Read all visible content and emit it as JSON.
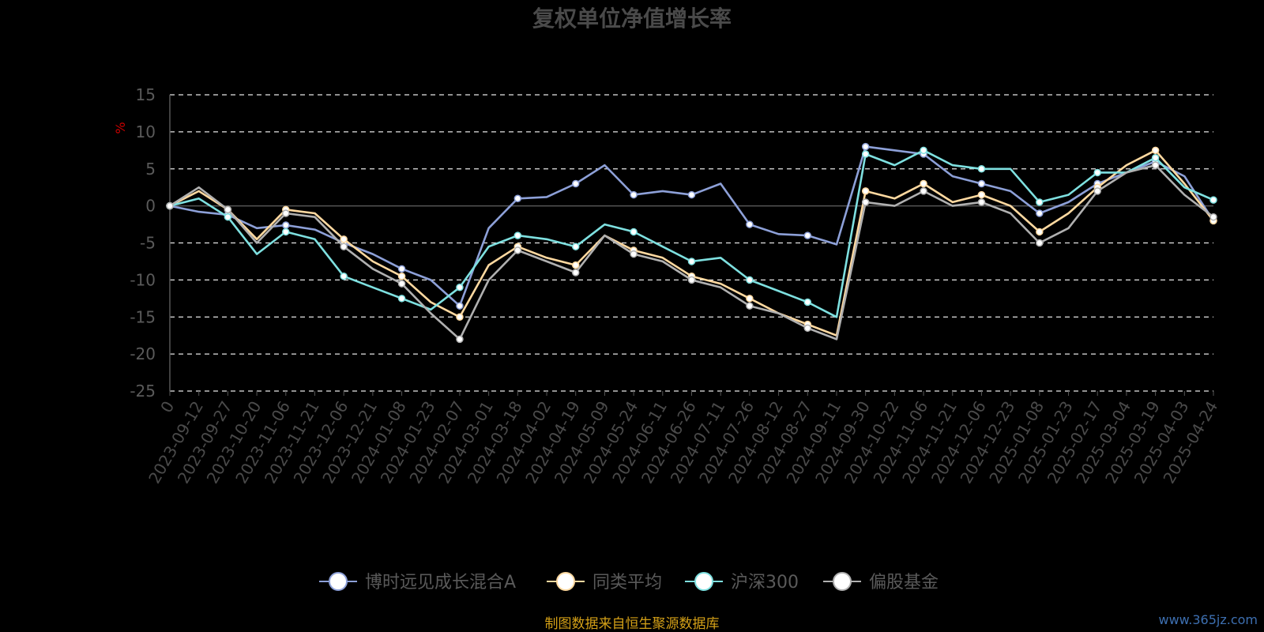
{
  "watermark": "www.365jz.com",
  "source_note": "制图数据来自恒生聚源数据库",
  "chart_data": {
    "type": "line",
    "title": "复权单位净值增长率",
    "ylabel": "%",
    "ylim": [
      -25,
      15
    ],
    "yticks": [
      15,
      10,
      5,
      0,
      -5,
      -10,
      -15,
      -20,
      -25
    ],
    "grid": "dashed-horizontal",
    "legend_position": "bottom-center",
    "x": [
      "0",
      "2023-09-12",
      "2023-09-27",
      "2023-10-20",
      "2023-11-06",
      "2023-11-21",
      "2023-12-06",
      "2023-12-21",
      "2024-01-08",
      "2024-01-23",
      "2024-02-07",
      "2024-03-01",
      "2024-03-18",
      "2024-04-02",
      "2024-04-19",
      "2024-05-09",
      "2024-05-24",
      "2024-06-11",
      "2024-06-26",
      "2024-07-11",
      "2024-07-26",
      "2024-08-12",
      "2024-08-27",
      "2024-09-11",
      "2024-09-30",
      "2024-10-22",
      "2024-11-06",
      "2024-11-21",
      "2024-12-06",
      "2024-12-23",
      "2025-01-08",
      "2025-01-23",
      "2025-02-17",
      "2025-03-04",
      "2025-03-19",
      "2025-04-03",
      "2025-04-24"
    ],
    "series": [
      {
        "name": "博时远见成长混合A",
        "color": "#8da0d8",
        "values": [
          0,
          -0.8,
          -1.2,
          -3.0,
          -2.6,
          -3.2,
          -5.0,
          -6.5,
          -8.5,
          -10.0,
          -13.5,
          -3.0,
          1.0,
          1.2,
          3.0,
          5.5,
          1.5,
          2.0,
          1.5,
          3.0,
          -2.5,
          -3.8,
          -4.0,
          -5.2,
          8.0,
          7.5,
          7.0,
          4.0,
          3.0,
          2.0,
          -1.0,
          0.5,
          3.0,
          4.5,
          6.0,
          4.0,
          -2.0
        ]
      },
      {
        "name": "同类平均",
        "color": "#ffd9a0",
        "values": [
          0,
          2.0,
          -0.5,
          -4.5,
          -0.5,
          -1.0,
          -4.5,
          -7.5,
          -9.5,
          -13.0,
          -15.0,
          -8.0,
          -5.5,
          -7.0,
          -8.0,
          -4.0,
          -6.0,
          -7.0,
          -9.5,
          -10.5,
          -12.5,
          -14.5,
          -16.0,
          -17.5,
          2.0,
          1.0,
          3.0,
          0.5,
          1.5,
          0.0,
          -3.5,
          -1.0,
          2.5,
          5.5,
          7.5,
          3.0,
          -2.0
        ]
      },
      {
        "name": "沪深300",
        "color": "#7ee0e0",
        "values": [
          0,
          1.0,
          -1.5,
          -6.5,
          -3.5,
          -4.5,
          -9.5,
          -11.0,
          -12.5,
          -14.0,
          -11.0,
          -5.5,
          -4.0,
          -4.5,
          -5.5,
          -2.5,
          -3.5,
          -5.5,
          -7.5,
          -7.0,
          -10.0,
          -11.5,
          -13.0,
          -15.0,
          7.0,
          5.5,
          7.5,
          5.5,
          5.0,
          5.0,
          0.5,
          1.5,
          4.5,
          4.5,
          6.5,
          2.5,
          0.8
        ]
      },
      {
        "name": "偏股基金",
        "color": "#b0b0b0",
        "values": [
          0,
          2.5,
          -0.5,
          -5.0,
          -1.0,
          -1.5,
          -5.5,
          -8.5,
          -10.5,
          -14.5,
          -18.0,
          -10.0,
          -6.0,
          -7.5,
          -9.0,
          -4.0,
          -6.5,
          -7.5,
          -10.0,
          -11.0,
          -13.5,
          -14.5,
          -16.5,
          -18.0,
          0.5,
          0.0,
          2.0,
          0.0,
          0.5,
          -1.0,
          -5.0,
          -3.0,
          2.0,
          4.5,
          5.5,
          1.5,
          -1.5
        ]
      }
    ]
  }
}
